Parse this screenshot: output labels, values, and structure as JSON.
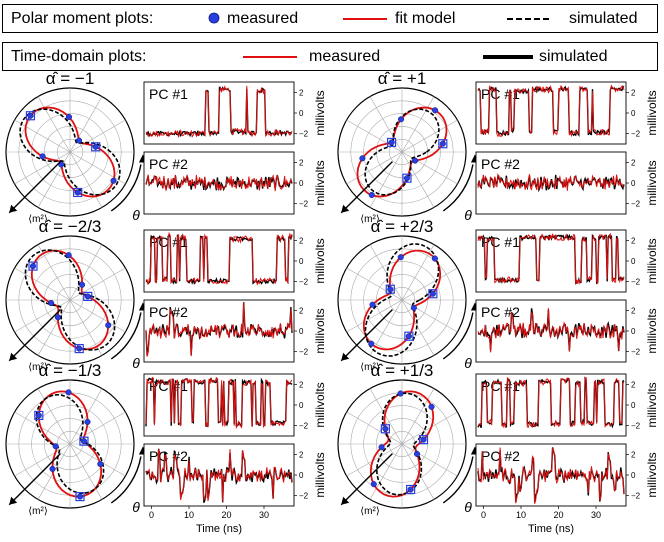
{
  "legend_polar": {
    "title": "Polar moment plots:",
    "measured": "measured",
    "fit": "fit model",
    "simulated": "simulated"
  },
  "legend_time": {
    "title": "Time-domain plots:",
    "measured": "measured",
    "simulated": "simulated"
  },
  "colors": {
    "measured_line": "#e01010",
    "simulated_line": "#000000",
    "marker": "#2a3fe0",
    "fit": "#e01010"
  },
  "polar_axis_label": "⟨m²⟩",
  "theta_label": "θ",
  "x_axis_label": "Time (ns)",
  "x_ticks": [
    "0",
    "10",
    "20",
    "30"
  ],
  "y_ticks": [
    "2",
    "0",
    "−2"
  ],
  "y_axis_label": "millivolts",
  "chart_data": [
    {
      "type": "polar",
      "alpha_label": "α̂ = −1",
      "fit_angle_deg": 135
    },
    {
      "type": "polar",
      "alpha_label": "α̂ = −2/3",
      "fit_angle_deg": 120
    },
    {
      "type": "polar",
      "alpha_label": "α̂ = −1/3",
      "fit_angle_deg": 105
    },
    {
      "type": "polar",
      "alpha_label": "α̂ = +1",
      "fit_angle_deg": 45
    },
    {
      "type": "polar",
      "alpha_label": "α̂ = +2/3",
      "fit_angle_deg": 60
    },
    {
      "type": "polar",
      "alpha_label": "α̂ = +1/3",
      "fit_angle_deg": 75
    },
    {
      "type": "line",
      "label": "PC #1",
      "xlim": [
        -2,
        38
      ],
      "ylim": [
        -3,
        3
      ]
    },
    {
      "type": "line",
      "label": "PC #2",
      "xlim": [
        -2,
        38
      ],
      "ylim": [
        -3,
        3
      ]
    }
  ]
}
